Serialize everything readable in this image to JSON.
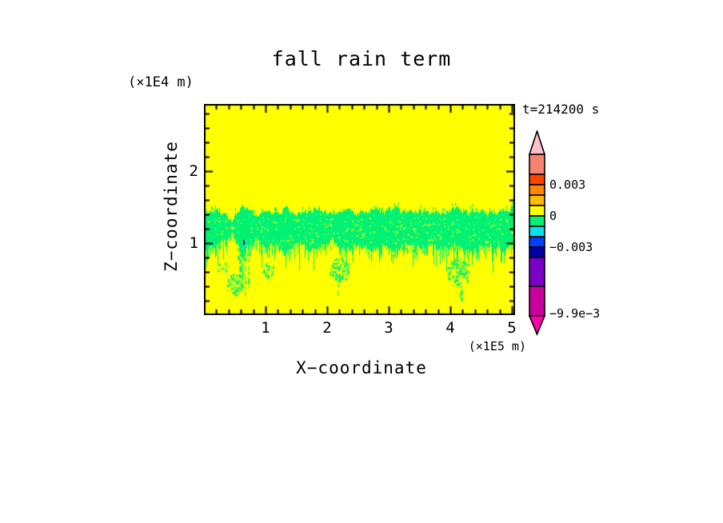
{
  "page": {
    "background": "#ffffff"
  },
  "chart_data": {
    "type": "heatmap",
    "title": "fall rain term",
    "time_label": "t=214200 s",
    "x_axis": {
      "label": "X−coordinate",
      "unit": "(×1E5 m)",
      "tick_labels": [
        "1",
        "2",
        "3",
        "4",
        "5"
      ],
      "range_1e5_m": [
        0,
        5.06
      ],
      "minor_per_major": 5
    },
    "z_axis": {
      "label": "Z−coordinate",
      "unit": "(×1E4 m)",
      "tick_labels": [
        "1",
        "2"
      ],
      "range_1e4_m": [
        0,
        2.93
      ],
      "minor_per_major": 5
    },
    "colorbar": {
      "labels": [
        "0.003",
        "0",
        "−0.003",
        "−9.9e−3"
      ],
      "label_levels": [
        0.003,
        0,
        -0.003,
        -0.0099
      ],
      "arrow_top_color": "#FFC0C8",
      "arrow_bottom_color": "#FF00AA",
      "segment_colors": [
        "#F88272",
        "#FF4400",
        "#FF8800",
        "#FFBB00",
        "#FFFF00",
        "#00F173",
        "#00E4F0",
        "#0040FF",
        "#0000A8",
        "#7A00C8",
        "#C8009B"
      ],
      "step_per_small_segment": 0.001
    },
    "field": {
      "background_color": "#FFFF00",
      "band_color": "#00F173",
      "band": {
        "x": [
          0.0,
          0.2,
          0.35,
          0.45,
          0.55,
          0.62,
          0.72,
          0.85,
          1.0,
          1.15,
          1.3,
          1.5,
          1.7,
          1.9,
          2.1,
          2.3,
          2.5,
          2.7,
          2.9,
          3.1,
          3.3,
          3.5,
          3.7,
          3.9,
          4.1,
          4.3,
          4.5,
          4.7,
          4.9,
          5.06
        ],
        "z_top": [
          1.4,
          1.46,
          1.38,
          1.3,
          1.42,
          1.54,
          1.44,
          1.38,
          1.47,
          1.42,
          1.5,
          1.38,
          1.44,
          1.47,
          1.42,
          1.45,
          1.4,
          1.46,
          1.42,
          1.47,
          1.43,
          1.46,
          1.41,
          1.44,
          1.47,
          1.42,
          1.45,
          1.4,
          1.47,
          1.52
        ],
        "z_bot": [
          0.88,
          1.0,
          1.1,
          1.16,
          1.02,
          0.84,
          0.96,
          1.06,
          0.94,
          1.0,
          0.86,
          1.02,
          0.92,
          0.99,
          1.04,
          0.94,
          1.0,
          0.92,
          0.98,
          0.93,
          1.0,
          0.94,
          0.99,
          0.92,
          0.97,
          0.91,
          0.98,
          0.93,
          0.97,
          1.0
        ]
      },
      "features": [
        {
          "type": "streak",
          "x0": 0.55,
          "x1": 0.73,
          "z_top": 1.3,
          "z_bot": 0.2,
          "density": 0.85
        },
        {
          "type": "blob",
          "x0": 0.36,
          "x1": 0.62,
          "z0": 0.28,
          "z1": 0.58,
          "density": 0.5
        },
        {
          "type": "blob",
          "x0": 0.22,
          "x1": 0.4,
          "z0": 0.58,
          "z1": 0.74,
          "density": 0.22
        },
        {
          "type": "blob",
          "x0": 0.93,
          "x1": 1.12,
          "z0": 0.53,
          "z1": 0.74,
          "density": 0.5
        },
        {
          "type": "blob",
          "x0": 2.04,
          "x1": 2.36,
          "z0": 0.45,
          "z1": 0.8,
          "density": 0.55
        },
        {
          "type": "streak",
          "x0": 2.16,
          "x1": 2.26,
          "z_top": 0.45,
          "z_bot": 0.22,
          "density": 0.45
        },
        {
          "type": "blob",
          "x0": 3.94,
          "x1": 4.3,
          "z0": 0.4,
          "z1": 0.8,
          "density": 0.55
        },
        {
          "type": "streak",
          "x0": 4.06,
          "x1": 4.18,
          "z_top": 0.42,
          "z_bot": 0.22,
          "density": 0.45
        }
      ],
      "specks": [
        {
          "x": 0.637,
          "z": 1.04,
          "w": 2,
          "h": 6,
          "color": "#0000A8"
        },
        {
          "x": 0.637,
          "z": 0.975,
          "w": 2,
          "h": 5,
          "color": "#00E4F0"
        }
      ]
    }
  }
}
